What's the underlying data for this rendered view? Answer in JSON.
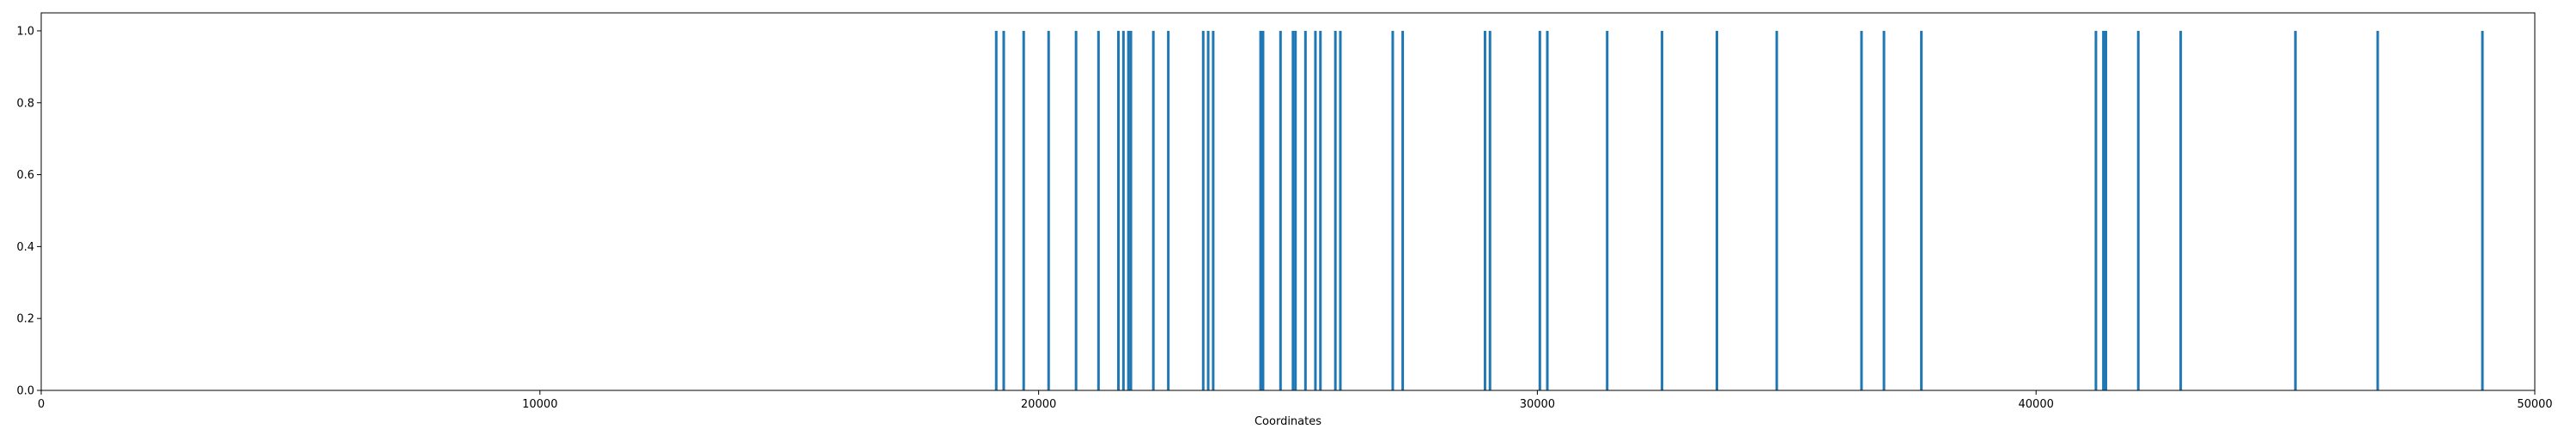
{
  "chart_data": {
    "type": "bar",
    "title": "",
    "xlabel": "Coordinates",
    "ylabel": "",
    "xlim": [
      0,
      50000
    ],
    "ylim": [
      0,
      1.05
    ],
    "grid": false,
    "color": "#1f77b4",
    "xticks": [
      0,
      10000,
      20000,
      30000,
      40000,
      50000
    ],
    "xtick_labels": [
      "0",
      "10000",
      "20000",
      "30000",
      "40000",
      "50000"
    ],
    "yticks": [
      0.0,
      0.2,
      0.4,
      0.6,
      0.8,
      1.0
    ],
    "ytick_labels": [
      "0.0",
      "0.2",
      "0.4",
      "0.6",
      "0.8",
      "1.0"
    ],
    "x": [
      19150,
      19300,
      19700,
      20200,
      20750,
      21200,
      21600,
      21700,
      21800,
      21850,
      22300,
      22600,
      23300,
      23400,
      23500,
      24450,
      24500,
      24850,
      25100,
      25150,
      25350,
      25550,
      25650,
      25950,
      26050,
      27100,
      27300,
      28950,
      29050,
      30050,
      30200,
      31400,
      32500,
      33600,
      34800,
      36500,
      36950,
      37700,
      41200,
      41350,
      41400,
      42050,
      42900,
      45200,
      46850,
      48950
    ],
    "values": [
      1,
      1,
      1,
      1,
      1,
      1,
      1,
      1,
      1,
      1,
      1,
      1,
      1,
      1,
      1,
      1,
      1,
      1,
      1,
      1,
      1,
      1,
      1,
      1,
      1,
      1,
      1,
      1,
      1,
      1,
      1,
      1,
      1,
      1,
      1,
      1,
      1,
      1,
      1,
      1,
      1,
      1,
      1,
      1,
      1,
      1
    ]
  }
}
